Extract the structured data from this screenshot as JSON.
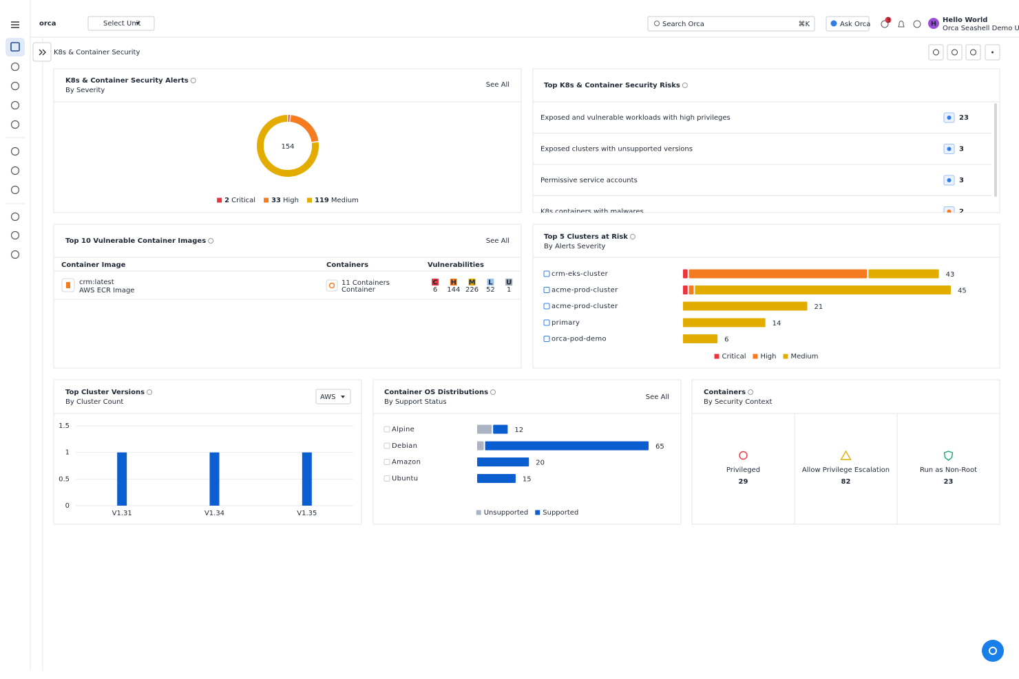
{
  "header": {
    "logo": "orca",
    "unit_select": "Select Unit",
    "search": "Search Orca",
    "search_shortcut": "⌘K",
    "ask": "Ask Orca",
    "notifications": 3,
    "avatar": "H",
    "user_name": "Hello World",
    "user_org": "Orca Seashell Demo U"
  },
  "page": {
    "title": "K8s & Container Security"
  },
  "risks": {
    "title": "Top K8s & Container Security Risks",
    "items": [
      {
        "label": "Exposed and vulnerable workloads with high privileges",
        "count": 23
      },
      {
        "label": "Exposed clusters with unsupported versions",
        "count": 3
      },
      {
        "label": "Permissive service accounts",
        "count": 3
      },
      {
        "label": "K8s containers with malwares",
        "count": 2
      }
    ]
  },
  "images": {
    "title": "Top 10 Vulnerable Container Images",
    "see_all": "See All",
    "columns": [
      "Container Image",
      "Containers",
      "Vulnerabilities"
    ],
    "rows": [
      {
        "image": "crm:latest",
        "image_type": "AWS ECR Image",
        "containers": "11 Containers",
        "container_type": "Container",
        "vulnerabilities": [
          {
            "label": "C",
            "count": 6
          },
          {
            "label": "H",
            "count": 144
          },
          {
            "label": "M",
            "count": 226
          },
          {
            "label": "L",
            "count": 52
          },
          {
            "label": "U",
            "count": 1
          }
        ]
      }
    ]
  },
  "containers": {
    "title": "Containers",
    "subtitle": "By Security Context",
    "cards": [
      {
        "label": "Privileged",
        "count": 29
      },
      {
        "label": "Allow Privilege Escalation",
        "count": 82
      },
      {
        "label": "Run as Non-Root",
        "count": 23
      }
    ]
  },
  "chart_data": [
    {
      "type": "pie",
      "donut": true,
      "title": "K8s & Container Security Alerts",
      "subtitle": "By Severity",
      "see_all": "See All",
      "total": 154,
      "categories": [
        "Critical",
        "High",
        "Medium"
      ],
      "values": [
        2,
        33,
        119
      ],
      "colors": [
        "#e8353f",
        "#f47b20",
        "#e3ac00"
      ]
    },
    {
      "type": "hbar",
      "stacked": true,
      "title": "Top 5 Clusters at Risk",
      "subtitle": "By Alerts Severity",
      "categories": [
        "crm-eks-cluster",
        "acme-prod-cluster",
        "acme-prod-cluster",
        "primary",
        "orca-pod-demo"
      ],
      "series": [
        {
          "name": "Critical",
          "color": "#e8353f",
          "values": [
            1,
            1,
            0,
            0,
            0
          ]
        },
        {
          "name": "High",
          "color": "#f47b20",
          "values": [
            30,
            1,
            0,
            0,
            0
          ]
        },
        {
          "name": "Medium",
          "color": "#e3ac00",
          "values": [
            12,
            43,
            21,
            14,
            6
          ]
        }
      ],
      "totals": [
        43,
        45,
        21,
        14,
        6
      ]
    },
    {
      "type": "bar",
      "title": "Top Cluster Versions",
      "subtitle": "By Cluster Count",
      "filter": "AWS",
      "categories": [
        "V1.31",
        "V1.34",
        "V1.35"
      ],
      "values": [
        1,
        1,
        1
      ],
      "color": "#0b5ed0",
      "ylim": [
        0,
        1.5
      ],
      "yticks": [
        0,
        0.5,
        1,
        1.5
      ],
      "grid": true
    },
    {
      "type": "hbar",
      "stacked": true,
      "title": "Container OS Distributions",
      "subtitle": "By Support Status",
      "see_all": "See All",
      "categories": [
        "Alpine",
        "Debian",
        "Amazon",
        "Ubuntu"
      ],
      "series": [
        {
          "name": "Unsupported",
          "color": "#aab4c3",
          "values": [
            6,
            3,
            0,
            0
          ]
        },
        {
          "name": "Supported",
          "color": "#0b5ed0",
          "values": [
            6,
            62,
            20,
            15
          ]
        }
      ],
      "totals": [
        12,
        65,
        20,
        15
      ]
    }
  ]
}
